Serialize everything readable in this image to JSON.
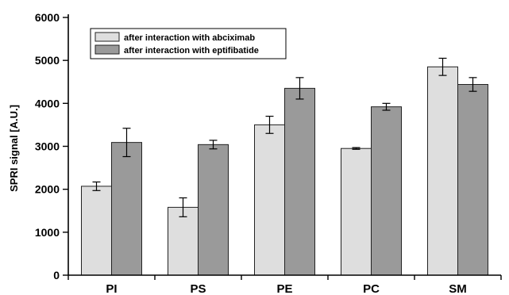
{
  "chart_data": {
    "type": "bar",
    "title": "",
    "xlabel": "",
    "ylabel": "SPRI signal [A.U.]",
    "ylim": [
      0,
      6000
    ],
    "yticks": [
      0,
      1000,
      2000,
      3000,
      4000,
      5000,
      6000
    ],
    "grid": false,
    "legend_position": "top-left",
    "categories": [
      "PI",
      "PS",
      "PE",
      "PC",
      "SM"
    ],
    "series": [
      {
        "name": "after interaction with abciximab",
        "color": "#dedede",
        "values": [
          2070,
          1580,
          3500,
          2950,
          4850
        ],
        "errors": [
          100,
          220,
          200,
          20,
          200
        ]
      },
      {
        "name": "after interaction with eptifibatide",
        "color": "#9a9a9a",
        "values": [
          3090,
          3040,
          4350,
          3920,
          4440
        ],
        "errors": [
          330,
          100,
          250,
          80,
          160
        ]
      }
    ]
  }
}
